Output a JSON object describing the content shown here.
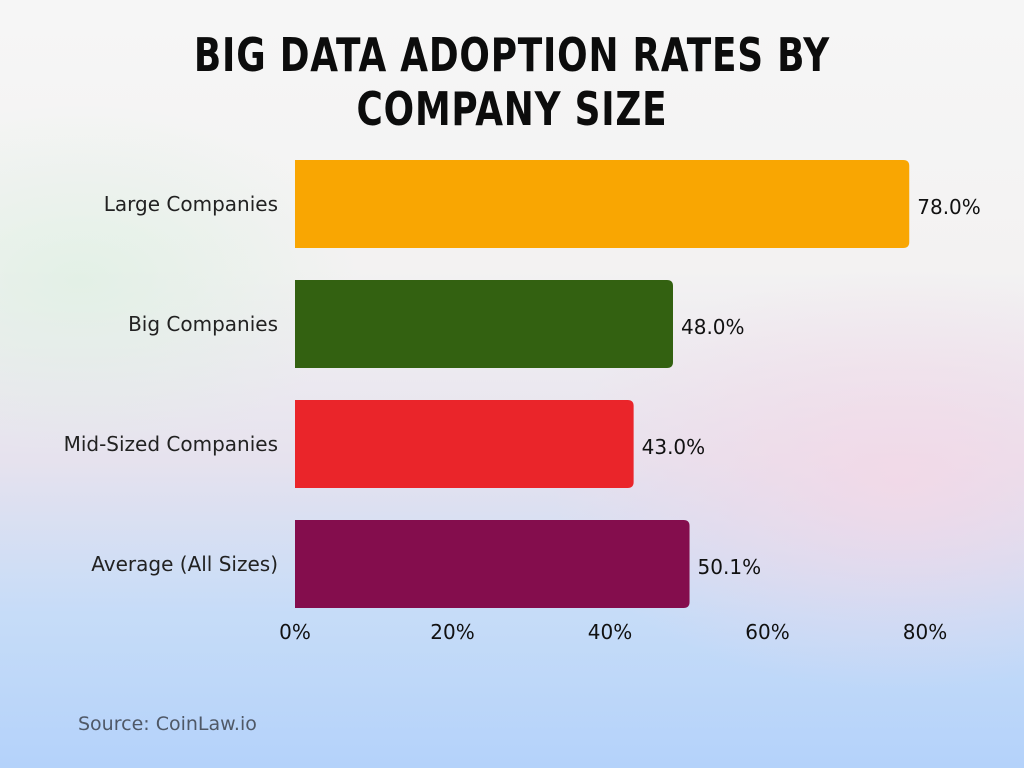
{
  "chart_data": {
    "type": "bar",
    "orientation": "horizontal",
    "title": "Big Data Adoption Rates by Company Size",
    "categories": [
      "Large Companies",
      "Big Companies",
      "Mid-Sized Companies",
      "Average (All Sizes)"
    ],
    "values": [
      78.0,
      48.0,
      43.0,
      50.1
    ],
    "data_labels": [
      "78.0%",
      "48.0%",
      "43.0%",
      "50.1%"
    ],
    "colors": [
      "#F9A602",
      "#336111",
      "#EA252A",
      "#840D4D"
    ],
    "xlim": [
      0,
      80
    ],
    "xticks": [
      0,
      20,
      40,
      60,
      80
    ],
    "xtick_labels": [
      "0%",
      "20%",
      "40%",
      "60%",
      "80%"
    ],
    "xlabel": "",
    "ylabel": "",
    "grid": false,
    "legend": "none"
  },
  "source": "Source: CoinLaw.io"
}
